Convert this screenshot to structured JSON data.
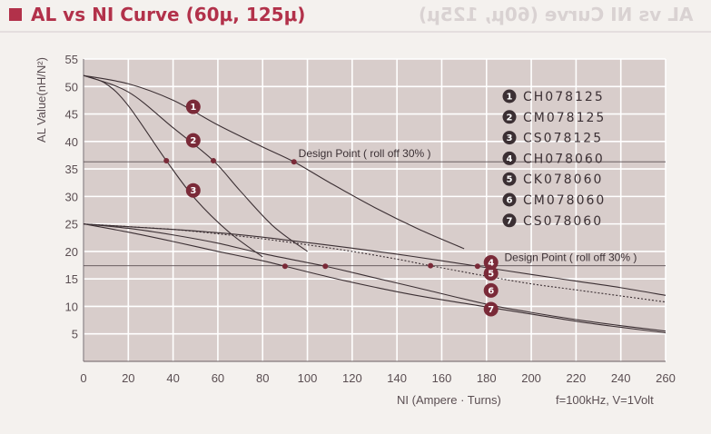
{
  "header": {
    "title": "AL vs NI Curve (60μ, 125μ)"
  },
  "chart_data": {
    "type": "line",
    "title": "AL vs NI Curve (60μ, 125μ)",
    "xlabel": "NI (Ampere · Turns)",
    "ylabel": "AL Value(nH/N²)",
    "condition_label": "f=100kHz, V=1Volt",
    "xlim": [
      0,
      260
    ],
    "ylim": [
      0,
      55
    ],
    "x_ticks": [
      "0",
      "20",
      "40",
      "60",
      "80",
      "100",
      "120",
      "140",
      "160",
      "180",
      "200",
      "220",
      "240",
      "260"
    ],
    "y_ticks": [
      "5",
      "10",
      "15",
      "20",
      "25",
      "30",
      "35",
      "40",
      "45",
      "50",
      "55"
    ],
    "grid": true,
    "legend_position": "top-right",
    "series": [
      {
        "name": "CH078125",
        "marker": "1",
        "dashed": false,
        "x": [
          0,
          20,
          40,
          60,
          80,
          94,
          110,
          130,
          150,
          170
        ],
        "y": [
          52,
          50.5,
          47.5,
          43,
          39,
          36.3,
          32.5,
          28,
          24,
          20.5
        ]
      },
      {
        "name": "CM078125",
        "marker": "2",
        "dashed": false,
        "x": [
          0,
          20,
          40,
          58,
          70,
          85,
          100
        ],
        "y": [
          52,
          49,
          42.5,
          36.5,
          31,
          24.5,
          20
        ]
      },
      {
        "name": "CS078125",
        "marker": "3",
        "dashed": false,
        "x": [
          0,
          10,
          20,
          37,
          50,
          65,
          80
        ],
        "y": [
          52,
          50.5,
          46.5,
          36.5,
          29.5,
          23.5,
          19
        ]
      },
      {
        "name": "CH078060",
        "marker": "4",
        "dashed": false,
        "x": [
          0,
          20,
          40,
          60,
          80,
          100,
          120,
          140,
          160,
          176,
          200,
          220,
          240,
          260
        ],
        "y": [
          25,
          24.5,
          24,
          23.4,
          22.6,
          21.6,
          20.6,
          19.5,
          18.3,
          17.3,
          15.8,
          14.6,
          13.4,
          12
        ]
      },
      {
        "name": "CK078060",
        "marker": "5",
        "dashed": true,
        "x": [
          0,
          20,
          40,
          60,
          80,
          100,
          120,
          140,
          155,
          180,
          200,
          220,
          240,
          260
        ],
        "y": [
          25,
          24.5,
          24,
          23.2,
          22.3,
          21.2,
          20,
          18.6,
          17.4,
          15.5,
          14.1,
          13,
          11.9,
          10.8
        ]
      },
      {
        "name": "CM078060",
        "marker": "6",
        "dashed": false,
        "x": [
          0,
          20,
          40,
          60,
          80,
          108,
          130,
          150,
          180,
          200,
          220,
          240,
          260
        ],
        "y": [
          25,
          24.2,
          23,
          21.5,
          19.6,
          17.3,
          15.2,
          13.3,
          10.4,
          8.9,
          7.6,
          6.5,
          5.5
        ]
      },
      {
        "name": "CS078060",
        "marker": "7",
        "dashed": false,
        "x": [
          0,
          20,
          40,
          60,
          80,
          90,
          110,
          130,
          150,
          180,
          200,
          220,
          240,
          260
        ],
        "y": [
          25,
          23.5,
          21.8,
          20,
          18.3,
          17.3,
          15.3,
          13.5,
          11.9,
          9.9,
          8.6,
          7.3,
          6.2,
          5.2
        ]
      }
    ],
    "reference_lines": [
      {
        "y": 36.3,
        "label": "Design Point ( roll off 30% )"
      },
      {
        "y": 17.4,
        "label": "Design Point ( roll off 30% )"
      }
    ],
    "design_points_125": [
      {
        "x": 37,
        "y": 36.5
      },
      {
        "x": 58,
        "y": 36.5
      },
      {
        "x": 94,
        "y": 36.3
      }
    ],
    "design_points_060": [
      {
        "x": 90,
        "y": 17.3
      },
      {
        "x": 108,
        "y": 17.3
      },
      {
        "x": 155,
        "y": 17.4
      },
      {
        "x": 176,
        "y": 17.3
      }
    ],
    "curve_markers": [
      {
        "label": "1",
        "x": 49,
        "y": 46.3
      },
      {
        "label": "2",
        "x": 49,
        "y": 40.2
      },
      {
        "label": "3",
        "x": 49,
        "y": 31.1
      },
      {
        "label": "4",
        "x": 182,
        "y": 18.0
      },
      {
        "label": "5",
        "x": 182,
        "y": 16.0
      },
      {
        "label": "6",
        "x": 182,
        "y": 12.9
      },
      {
        "label": "7",
        "x": 182,
        "y": 9.5
      }
    ]
  }
}
